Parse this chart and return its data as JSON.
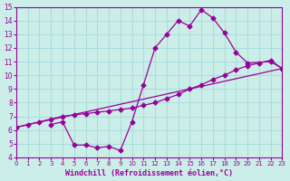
{
  "bg_color": "#cceee8",
  "line_color": "#990099",
  "grid_color": "#aadddd",
  "xlabel": "Windchill (Refroidissement éolien,°C)",
  "xlim": [
    0,
    23
  ],
  "ylim": [
    4,
    15
  ],
  "xticks": [
    0,
    1,
    2,
    3,
    4,
    5,
    6,
    7,
    8,
    9,
    10,
    11,
    12,
    13,
    14,
    15,
    16,
    17,
    18,
    19,
    20,
    21,
    22,
    23
  ],
  "yticks": [
    4,
    5,
    6,
    7,
    8,
    9,
    10,
    11,
    12,
    13,
    14,
    15
  ],
  "line1_x": [
    3,
    4,
    5,
    6,
    7,
    8,
    9,
    10,
    11,
    12,
    13,
    14,
    15,
    16,
    17,
    18,
    19,
    20,
    22,
    23
  ],
  "line1_y": [
    6.4,
    6.6,
    4.9,
    4.9,
    4.7,
    4.8,
    4.5,
    6.6,
    9.3,
    12.0,
    13.0,
    14.0,
    13.6,
    14.8,
    14.2,
    13.1,
    11.7,
    10.9,
    11.0,
    10.5
  ],
  "line2_x": [
    0,
    1,
    2,
    3,
    4,
    5,
    6,
    7,
    8,
    9,
    10,
    11,
    12,
    13,
    14,
    15,
    16,
    17,
    18,
    19,
    20,
    21,
    22,
    23
  ],
  "line2_y": [
    6.2,
    6.4,
    6.6,
    6.8,
    7.0,
    7.1,
    7.2,
    7.3,
    7.4,
    7.5,
    7.6,
    7.8,
    8.0,
    8.3,
    8.6,
    9.0,
    9.3,
    9.7,
    10.0,
    10.4,
    10.7,
    10.9,
    11.1,
    10.5
  ],
  "line3_x": [
    0,
    23
  ],
  "line3_y": [
    6.2,
    10.5
  ]
}
